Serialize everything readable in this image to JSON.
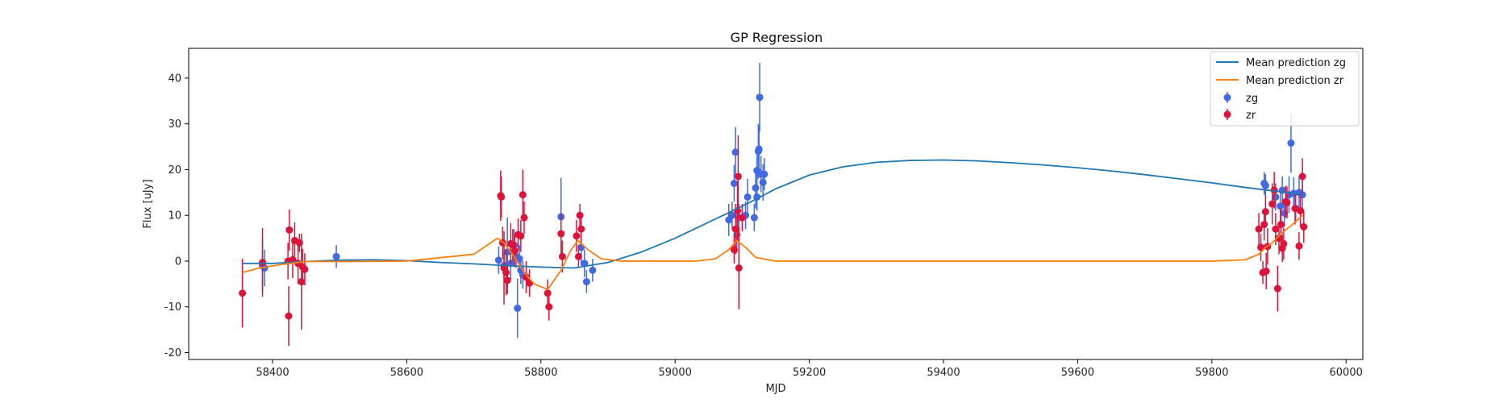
{
  "chart_data": {
    "type": "scatter",
    "title": "GP Regression",
    "xlabel": "MJD",
    "ylabel": "Flux [uJy]",
    "xlim": [
      58275,
      60025
    ],
    "ylim": [
      -21.5,
      46.5
    ],
    "xticks": [
      58400,
      58600,
      58800,
      59000,
      59200,
      59400,
      59600,
      59800,
      60000
    ],
    "yticks": [
      -20,
      -10,
      0,
      10,
      20,
      30,
      40
    ],
    "grid": false,
    "legend_position": "top-right",
    "legend": [
      "Mean prediction zg",
      "Mean prediction zr",
      "zg",
      "zr"
    ],
    "colors": {
      "mean_zg": "#1f77b4",
      "mean_zr": "#ff7f0e",
      "zg": "#4169e1",
      "zr": "#dc143c"
    },
    "lines": [
      {
        "name": "Mean prediction zg",
        "color": "#1f77b4",
        "x": [
          58355,
          58400,
          58450,
          58500,
          58550,
          58600,
          58650,
          58700,
          58750,
          58800,
          58850,
          58900,
          58950,
          59000,
          59050,
          59100,
          59150,
          59200,
          59250,
          59300,
          59350,
          59400,
          59450,
          59500,
          59550,
          59600,
          59650,
          59700,
          59750,
          59800,
          59850,
          59900,
          59935
        ],
        "y": [
          -0.5,
          -0.5,
          -0.1,
          0.2,
          0.3,
          0.1,
          -0.3,
          -0.6,
          -1.0,
          -1.3,
          -1.5,
          -0.3,
          2.0,
          5.0,
          8.5,
          12.0,
          15.8,
          18.8,
          20.6,
          21.6,
          22.0,
          22.1,
          21.9,
          21.5,
          21.0,
          20.4,
          19.7,
          18.9,
          18.0,
          17.1,
          16.1,
          15.2,
          14.6
        ]
      },
      {
        "name": "Mean prediction zr",
        "color": "#ff7f0e",
        "x": [
          58355,
          58380,
          58420,
          58450,
          58500,
          58600,
          58700,
          58720,
          58735,
          58745,
          58760,
          58775,
          58790,
          58810,
          58830,
          58845,
          58855,
          58870,
          58890,
          58920,
          58960,
          59000,
          59030,
          59060,
          59080,
          59092,
          59105,
          59120,
          59150,
          59200,
          59400,
          59600,
          59800,
          59850,
          59870,
          59880,
          59890,
          59900,
          59910,
          59920,
          59935
        ],
        "y": [
          -2.5,
          -1.5,
          -0.6,
          -0.1,
          -0.1,
          0.0,
          1.5,
          3.5,
          5.0,
          4.0,
          1.0,
          -2.5,
          -5.0,
          -6.2,
          -2.0,
          2.5,
          4.5,
          2.5,
          0.5,
          0.0,
          0.0,
          0.0,
          0.0,
          0.5,
          2.5,
          4.5,
          3.0,
          0.8,
          0.0,
          0.0,
          0.0,
          0.0,
          0.0,
          0.3,
          1.5,
          3.0,
          4.0,
          5.5,
          6.8,
          8.0,
          10.0
        ]
      }
    ],
    "series": [
      {
        "name": "zg",
        "color": "#4169e1",
        "points": [
          {
            "x": 58385,
            "y": -1.0,
            "err": 6.0
          },
          {
            "x": 58388,
            "y": -1.5,
            "err": 4.0
          },
          {
            "x": 58495,
            "y": 1.0,
            "err": 2.5
          },
          {
            "x": 58737,
            "y": 0.2,
            "err": 3.0
          },
          {
            "x": 58745,
            "y": -1.0,
            "err": 3.0
          },
          {
            "x": 58750,
            "y": 2.0,
            "err": 7.5
          },
          {
            "x": 58755,
            "y": -0.5,
            "err": 3.5
          },
          {
            "x": 58760,
            "y": 3.5,
            "err": 3.5
          },
          {
            "x": 58763,
            "y": 1.0,
            "err": 2.5
          },
          {
            "x": 58765,
            "y": -10.3,
            "err": 6.5
          },
          {
            "x": 58768,
            "y": 0.5,
            "err": 3.0
          },
          {
            "x": 58770,
            "y": -2.0,
            "err": 3.0
          },
          {
            "x": 58773,
            "y": -3.0,
            "err": 3.0
          },
          {
            "x": 58830,
            "y": 9.7,
            "err": 8.5
          },
          {
            "x": 58860,
            "y": 3.0,
            "err": 4.0
          },
          {
            "x": 58865,
            "y": -0.5,
            "err": 3.0
          },
          {
            "x": 58868,
            "y": -4.5,
            "err": 2.5
          },
          {
            "x": 58877,
            "y": -2.0,
            "err": 2.5
          },
          {
            "x": 59080,
            "y": 9.0,
            "err": 3.5
          },
          {
            "x": 59085,
            "y": 10.0,
            "err": 3.0
          },
          {
            "x": 59088,
            "y": 17.0,
            "err": 4.0
          },
          {
            "x": 59090,
            "y": 23.8,
            "err": 5.5
          },
          {
            "x": 59092,
            "y": 5.8,
            "err": 4.0
          },
          {
            "x": 59095,
            "y": 9.5,
            "err": 3.0
          },
          {
            "x": 59105,
            "y": 10.0,
            "err": 3.0
          },
          {
            "x": 59108,
            "y": 14.0,
            "err": 4.0
          },
          {
            "x": 59118,
            "y": 9.5,
            "err": 3.0
          },
          {
            "x": 59120,
            "y": 16.0,
            "err": 4.5
          },
          {
            "x": 59122,
            "y": 19.8,
            "err": 5.0
          },
          {
            "x": 59124,
            "y": 24.0,
            "err": 6.0
          },
          {
            "x": 59125,
            "y": 24.5,
            "err": 5.0
          },
          {
            "x": 59126,
            "y": 35.8,
            "err": 7.5
          },
          {
            "x": 59128,
            "y": 19.0,
            "err": 4.0
          },
          {
            "x": 59122,
            "y": 14.0,
            "err": 3.0
          },
          {
            "x": 59131,
            "y": 17.2,
            "err": 4.0
          },
          {
            "x": 59133,
            "y": 19.0,
            "err": 3.5
          },
          {
            "x": 59878,
            "y": 17.0,
            "err": 2.5
          },
          {
            "x": 59880,
            "y": 16.5,
            "err": 2.5
          },
          {
            "x": 59895,
            "y": 14.0,
            "err": 3.0
          },
          {
            "x": 59902,
            "y": 12.0,
            "err": 3.5
          },
          {
            "x": 59905,
            "y": 15.5,
            "err": 3.0
          },
          {
            "x": 59908,
            "y": 10.5,
            "err": 3.0
          },
          {
            "x": 59915,
            "y": 14.5,
            "err": 4.0
          },
          {
            "x": 59918,
            "y": 25.8,
            "err": 6.5
          },
          {
            "x": 59922,
            "y": 14.8,
            "err": 3.5
          },
          {
            "x": 59925,
            "y": 11.5,
            "err": 3.0
          },
          {
            "x": 59930,
            "y": 15.0,
            "err": 3.5
          },
          {
            "x": 59935,
            "y": 14.5,
            "err": 3.0
          }
        ]
      },
      {
        "name": "zr",
        "color": "#dc143c",
        "points": [
          {
            "x": 58355,
            "y": -7.0,
            "err": 7.5
          },
          {
            "x": 58385,
            "y": -0.3,
            "err": 7.5
          },
          {
            "x": 58423,
            "y": 0.0,
            "err": 4.0
          },
          {
            "x": 58424,
            "y": -12.0,
            "err": 6.5
          },
          {
            "x": 58425,
            "y": 6.8,
            "err": 4.5
          },
          {
            "x": 58430,
            "y": 0.3,
            "err": 4.0
          },
          {
            "x": 58433,
            "y": 4.5,
            "err": 4.0
          },
          {
            "x": 58438,
            "y": -0.5,
            "err": 4.5
          },
          {
            "x": 58440,
            "y": 4.0,
            "err": 2.0
          },
          {
            "x": 58443,
            "y": -4.5,
            "err": 10.5
          },
          {
            "x": 58445,
            "y": -1.3,
            "err": 4.0
          },
          {
            "x": 58448,
            "y": -1.8,
            "err": 3.5
          },
          {
            "x": 58740,
            "y": 14.3,
            "err": 5.5
          },
          {
            "x": 58741,
            "y": 14.0,
            "err": 4.5
          },
          {
            "x": 58743,
            "y": 4.0,
            "err": 3.5
          },
          {
            "x": 58745,
            "y": -1.5,
            "err": 8.0
          },
          {
            "x": 58748,
            "y": -2.5,
            "err": 5.0
          },
          {
            "x": 58750,
            "y": -4.2,
            "err": 3.0
          },
          {
            "x": 58755,
            "y": 3.8,
            "err": 4.5
          },
          {
            "x": 58758,
            "y": 3.5,
            "err": 3.5
          },
          {
            "x": 58761,
            "y": 2.2,
            "err": 3.5
          },
          {
            "x": 58766,
            "y": 5.8,
            "err": 3.5
          },
          {
            "x": 58770,
            "y": 5.5,
            "err": 3.5
          },
          {
            "x": 58773,
            "y": 14.5,
            "err": 5.5
          },
          {
            "x": 58775,
            "y": 9.5,
            "err": 3.5
          },
          {
            "x": 58778,
            "y": -3.5,
            "err": 3.5
          },
          {
            "x": 58783,
            "y": -4.8,
            "err": 3.0
          },
          {
            "x": 58810,
            "y": -7.0,
            "err": 3.0
          },
          {
            "x": 58812,
            "y": -10.0,
            "err": 3.0
          },
          {
            "x": 58830,
            "y": 6.0,
            "err": 4.5
          },
          {
            "x": 58832,
            "y": 1.0,
            "err": 3.5
          },
          {
            "x": 58853,
            "y": 5.5,
            "err": 3.5
          },
          {
            "x": 58856,
            "y": 1.0,
            "err": 2.5
          },
          {
            "x": 58858,
            "y": 10.0,
            "err": 2.5
          },
          {
            "x": 58860,
            "y": 7.0,
            "err": 3.5
          },
          {
            "x": 59088,
            "y": 2.5,
            "err": 3.0
          },
          {
            "x": 59090,
            "y": 7.0,
            "err": 5.5
          },
          {
            "x": 59093,
            "y": 11.0,
            "err": 6.5
          },
          {
            "x": 59094,
            "y": 18.5,
            "err": 9.0
          },
          {
            "x": 59095,
            "y": -1.5,
            "err": 9.0
          },
          {
            "x": 59100,
            "y": 9.5,
            "err": 3.0
          },
          {
            "x": 59870,
            "y": 7.0,
            "err": 3.5
          },
          {
            "x": 59873,
            "y": 3.0,
            "err": 3.0
          },
          {
            "x": 59876,
            "y": -2.5,
            "err": 2.5
          },
          {
            "x": 59878,
            "y": 8.0,
            "err": 3.5
          },
          {
            "x": 59880,
            "y": 10.8,
            "err": 3.5
          },
          {
            "x": 59881,
            "y": -2.2,
            "err": 4.0
          },
          {
            "x": 59883,
            "y": 3.2,
            "err": 4.0
          },
          {
            "x": 59890,
            "y": 12.5,
            "err": 4.5
          },
          {
            "x": 59893,
            "y": 15.5,
            "err": 4.0
          },
          {
            "x": 59895,
            "y": 7.0,
            "err": 3.5
          },
          {
            "x": 59898,
            "y": -6.0,
            "err": 5.0
          },
          {
            "x": 59900,
            "y": 5.0,
            "err": 3.5
          },
          {
            "x": 59903,
            "y": 8.0,
            "err": 3.5
          },
          {
            "x": 59905,
            "y": 2.8,
            "err": 3.0
          },
          {
            "x": 59907,
            "y": 3.8,
            "err": 3.5
          },
          {
            "x": 59910,
            "y": 13.0,
            "err": 3.5
          },
          {
            "x": 59912,
            "y": 12.8,
            "err": 3.5
          },
          {
            "x": 59924,
            "y": 11.5,
            "err": 3.5
          },
          {
            "x": 59930,
            "y": 3.3,
            "err": 3.0
          },
          {
            "x": 59932,
            "y": 11.0,
            "err": 3.5
          },
          {
            "x": 59935,
            "y": 18.5,
            "err": 4.0
          },
          {
            "x": 59937,
            "y": 7.5,
            "err": 3.5
          }
        ]
      }
    ]
  }
}
